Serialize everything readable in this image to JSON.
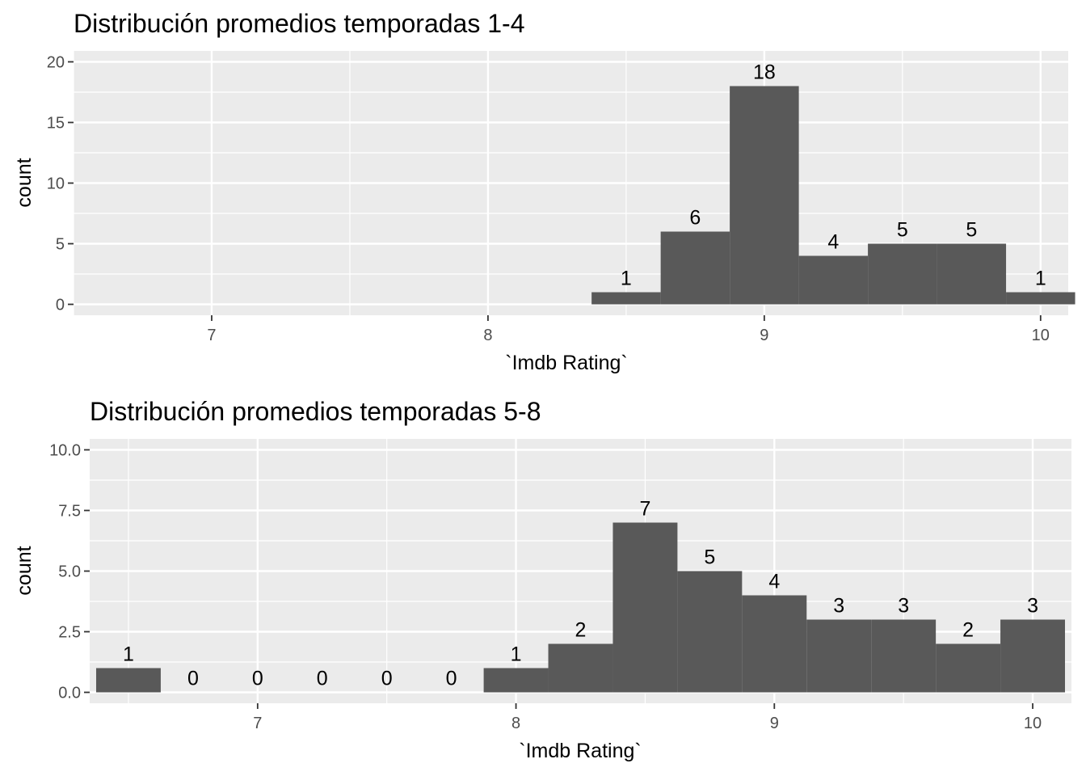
{
  "colors": {
    "panel_bg": "#ebebeb",
    "grid": "#ffffff",
    "bar": "#595959",
    "tick": "#333333",
    "tick_text": "#4d4d4d"
  },
  "chart_data": [
    {
      "type": "bar",
      "title": "Distribución promedios temporadas 1-4",
      "xlabel": "`Imdb Rating`",
      "ylabel": "count",
      "grid": true,
      "xlim": [
        6.5,
        10.1
      ],
      "ylim": [
        -0.9,
        20.9
      ],
      "x_ticks": [
        7,
        8,
        9,
        10
      ],
      "x_tick_labels": [
        "7",
        "8",
        "9",
        "10"
      ],
      "y_ticks": [
        0,
        5,
        10,
        15,
        20
      ],
      "y_tick_labels": [
        "0",
        "5",
        "10",
        "15",
        "20"
      ],
      "bin_width": 0.25,
      "x": [
        8.5,
        8.75,
        9.0,
        9.25,
        9.5,
        9.75,
        10.0
      ],
      "values": [
        1,
        6,
        18,
        4,
        5,
        5,
        1
      ],
      "labels": [
        "1",
        "6",
        "18",
        "4",
        "5",
        "5",
        "1"
      ]
    },
    {
      "type": "bar",
      "title": "Distribución promedios temporadas 5-8",
      "xlabel": "`Imdb Rating`",
      "ylabel": "count",
      "grid": true,
      "xlim": [
        6.35,
        10.15
      ],
      "ylim": [
        -0.45,
        10.45
      ],
      "x_ticks": [
        7,
        8,
        9,
        10
      ],
      "x_tick_labels": [
        "7",
        "8",
        "9",
        "10"
      ],
      "y_ticks": [
        0,
        2.5,
        5,
        7.5,
        10
      ],
      "y_tick_labels": [
        "0.0",
        "2.5",
        "5.0",
        "7.5",
        "10.0"
      ],
      "bin_width": 0.25,
      "x": [
        6.5,
        6.75,
        7.0,
        7.25,
        7.5,
        7.75,
        8.0,
        8.25,
        8.5,
        8.75,
        9.0,
        9.25,
        9.5,
        9.75,
        10.0
      ],
      "values": [
        1,
        0,
        0,
        0,
        0,
        0,
        1,
        2,
        7,
        5,
        4,
        3,
        3,
        2,
        3
      ],
      "labels": [
        "1",
        "0",
        "0",
        "0",
        "0",
        "0",
        "1",
        "2",
        "7",
        "5",
        "4",
        "3",
        "3",
        "2",
        "3"
      ]
    }
  ]
}
